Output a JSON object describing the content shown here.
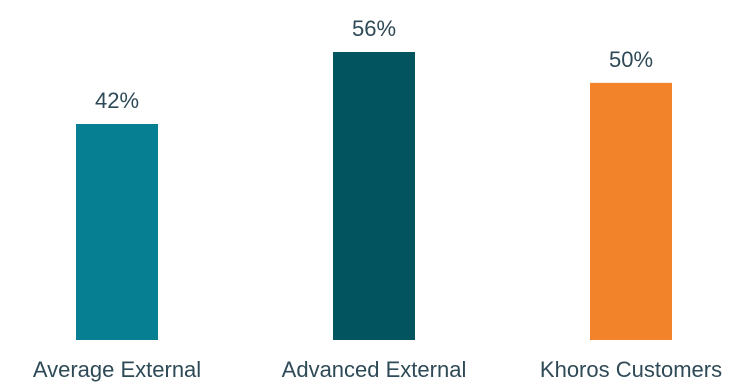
{
  "chart_data": {
    "type": "bar",
    "categories": [
      "Average External",
      "Advanced External",
      "Khoros Customers"
    ],
    "values": [
      42,
      56,
      50
    ],
    "value_labels": [
      "42%",
      "56%",
      "50%"
    ],
    "colors": [
      "#067f93",
      "#02555f",
      "#f2832a"
    ],
    "ylim": [
      0,
      56
    ],
    "grid": false,
    "legend": "none"
  }
}
